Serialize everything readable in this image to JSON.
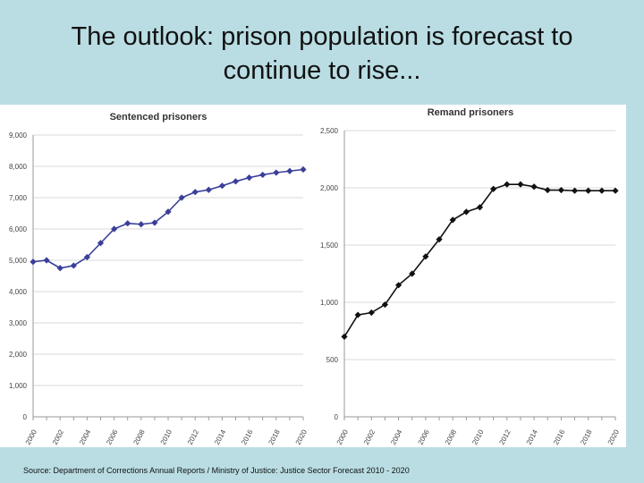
{
  "slide": {
    "title_line1": "The outlook: prison population is forecast to",
    "title_line2": "continue to rise...",
    "source": "Source: Department of Corrections Annual Reports / Ministry of Justice: Justice Sector Forecast 2010 - 2020"
  },
  "colors": {
    "background": "#b9dde3",
    "panel": "#ffffff",
    "sentenced_series": "#3b3f99",
    "remand_series": "#111111",
    "gridline": "#d9d9d9",
    "axis": "#9a9a9a"
  },
  "chart_data": [
    {
      "type": "line",
      "title": "Sentenced prisoners",
      "xlabel": "",
      "ylabel": "",
      "x": [
        2000,
        2001,
        2002,
        2003,
        2004,
        2005,
        2006,
        2007,
        2008,
        2009,
        2010,
        2011,
        2012,
        2013,
        2014,
        2015,
        2016,
        2017,
        2018,
        2019,
        2020
      ],
      "x_tick_labels": [
        "2000",
        "2002",
        "2004",
        "2006",
        "2008",
        "2010",
        "2012",
        "2014",
        "2016",
        "2018",
        "2020"
      ],
      "y_tick_labels": [
        "0",
        "1,000",
        "2,000",
        "3,000",
        "4,000",
        "5,000",
        "6,000",
        "7,000",
        "8,000",
        "9,000"
      ],
      "ylim": [
        0,
        9000
      ],
      "grid": true,
      "marker": "diamond",
      "series": [
        {
          "values": [
            4950,
            5000,
            4750,
            4830,
            5100,
            5550,
            6000,
            6180,
            6150,
            6200,
            6550,
            7000,
            7180,
            7250,
            7380,
            7520,
            7640,
            7730,
            7800,
            7850,
            7900
          ]
        }
      ]
    },
    {
      "type": "line",
      "title": "Remand prisoners",
      "xlabel": "",
      "ylabel": "",
      "x": [
        2000,
        2001,
        2002,
        2003,
        2004,
        2005,
        2006,
        2007,
        2008,
        2009,
        2010,
        2011,
        2012,
        2013,
        2014,
        2015,
        2016,
        2017,
        2018,
        2019,
        2020
      ],
      "x_tick_labels": [
        "2000",
        "2002",
        "2004",
        "2006",
        "2008",
        "2010",
        "2012",
        "2014",
        "2016",
        "2018",
        "2020"
      ],
      "y_tick_labels": [
        "0",
        "500",
        "1,000",
        "1,500",
        "2,000",
        "2,500"
      ],
      "ylim": [
        0,
        2500
      ],
      "grid": true,
      "marker": "diamond",
      "series": [
        {
          "values": [
            700,
            890,
            910,
            980,
            1150,
            1250,
            1400,
            1550,
            1720,
            1790,
            1830,
            1990,
            2030,
            2030,
            2010,
            1980,
            1980,
            1975,
            1975,
            1975,
            1975
          ]
        }
      ]
    }
  ]
}
